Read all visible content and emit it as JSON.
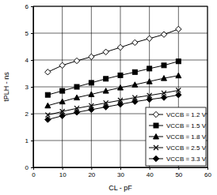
{
  "chart_data": {
    "type": "line",
    "x_label": "CL - pF",
    "y_label": "tPLH - ns",
    "x": [
      5,
      10,
      15,
      20,
      25,
      30,
      35,
      40,
      45,
      50
    ],
    "series": [
      {
        "name": "VCCB = 1.2 V",
        "color": "#000000",
        "marker": "diamond-open",
        "values": [
          3.55,
          3.8,
          3.97,
          4.12,
          4.3,
          4.47,
          4.65,
          4.8,
          4.95,
          5.15
        ]
      },
      {
        "name": "VCCB = 1.5 V",
        "color": "#000000",
        "marker": "square",
        "values": [
          2.7,
          2.85,
          3.0,
          3.15,
          3.3,
          3.43,
          3.55,
          3.68,
          3.8,
          3.95
        ]
      },
      {
        "name": "VCCB = 1.8 V",
        "color": "#000000",
        "marker": "triangle",
        "values": [
          2.3,
          2.45,
          2.6,
          2.72,
          2.85,
          2.97,
          3.08,
          3.2,
          3.32,
          3.42
        ]
      },
      {
        "name": "VCCB = 2.5 V",
        "color": "#000000",
        "marker": "x",
        "values": [
          1.95,
          2.08,
          2.2,
          2.3,
          2.4,
          2.5,
          2.6,
          2.68,
          2.77,
          2.87
        ]
      },
      {
        "name": "VCCB = 3.3 V",
        "color": "#000000",
        "marker": "diamond",
        "values": [
          1.78,
          1.92,
          2.05,
          2.15,
          2.25,
          2.35,
          2.45,
          2.53,
          2.6,
          2.7
        ]
      }
    ],
    "xlim": [
      0,
      60
    ],
    "xticks": [
      0,
      10,
      20,
      30,
      40,
      50,
      60
    ],
    "ylim": [
      0,
      6
    ],
    "yticks": [
      0,
      1,
      2,
      3,
      4,
      5,
      6
    ],
    "grid": true,
    "legend": "bottom-right"
  }
}
